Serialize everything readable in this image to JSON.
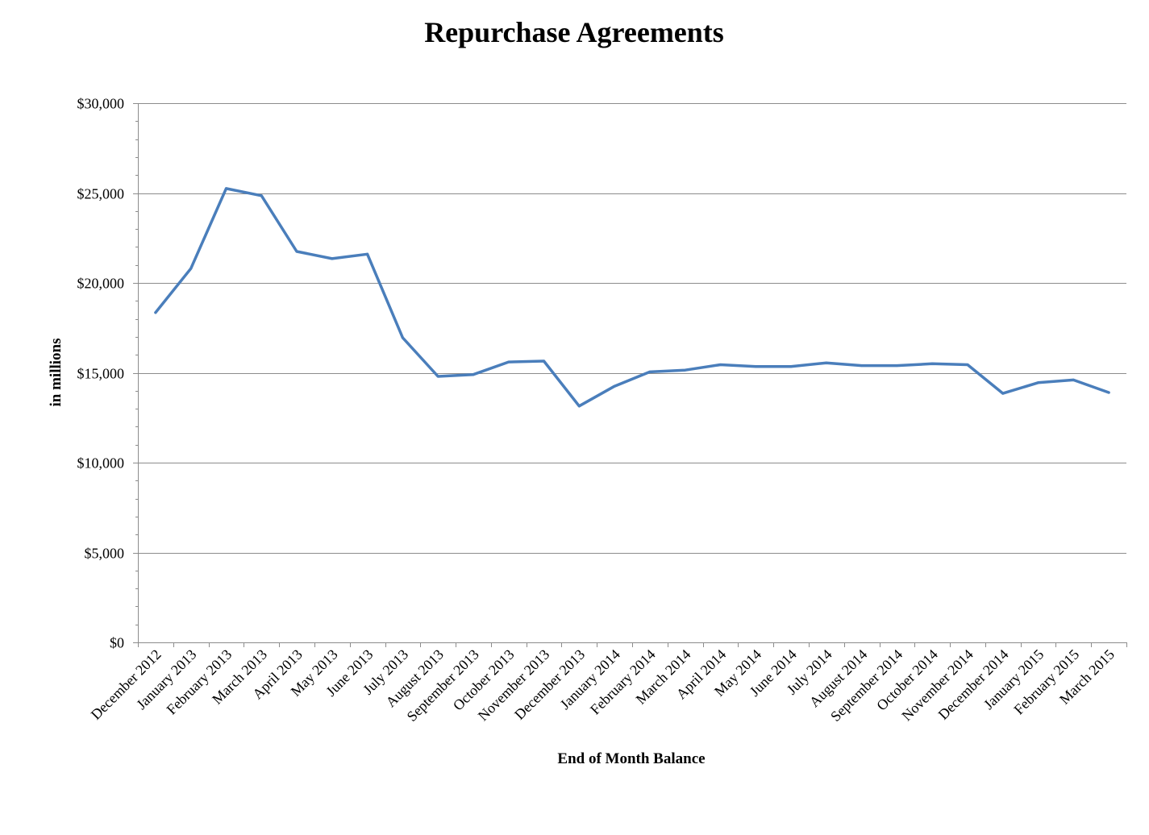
{
  "chart_data": {
    "type": "line",
    "title": "Repurchase Agreements",
    "xlabel": "End of Month Balance",
    "ylabel": "in millions",
    "ylim": [
      0,
      30000
    ],
    "y_ticks": [
      {
        "value": 0,
        "label": "$0"
      },
      {
        "value": 5000,
        "label": "$5,000"
      },
      {
        "value": 10000,
        "label": "$10,000"
      },
      {
        "value": 15000,
        "label": "$15,000"
      },
      {
        "value": 20000,
        "label": "$20,000"
      },
      {
        "value": 25000,
        "label": "$25,000"
      },
      {
        "value": 30000,
        "label": "$30,000"
      }
    ],
    "grid": true,
    "legend": "none",
    "line_color": "#4a7ebb",
    "categories": [
      "December 2012",
      "January 2013",
      "February 2013",
      "March 2013",
      "April 2013",
      "May 2013",
      "June 2013",
      "July 2013",
      "August 2013",
      "September 2013",
      "October 2013",
      "November 2013",
      "December 2013",
      "January 2014",
      "February 2014",
      "March 2014",
      "April 2014",
      "May 2014",
      "June 2014",
      "July 2014",
      "August 2014",
      "September 2014",
      "October 2014",
      "November 2014",
      "December 2014",
      "January 2015",
      "February 2015",
      "March 2015"
    ],
    "series": [
      {
        "values": [
          18350,
          20800,
          25250,
          24850,
          21750,
          21350,
          21600,
          16950,
          14800,
          14900,
          15600,
          15650,
          13150,
          14250,
          15050,
          15150,
          15450,
          15350,
          15350,
          15550,
          15400,
          15400,
          15500,
          15450,
          13850,
          14450,
          14600,
          13900
        ]
      }
    ]
  }
}
